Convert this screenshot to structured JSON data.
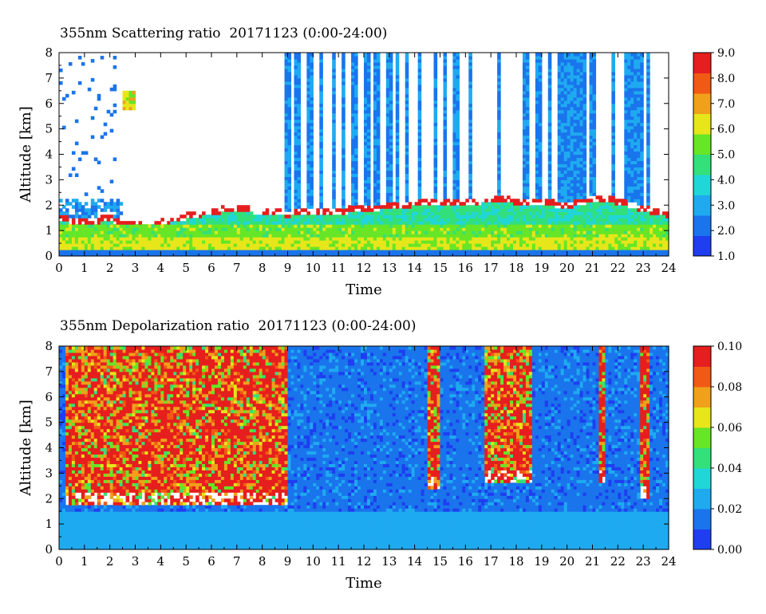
{
  "colors": {
    "scale": [
      "#1e3ef0",
      "#1a74ec",
      "#1faaf0",
      "#20d6d6",
      "#33e07a",
      "#66e626",
      "#e6e61a",
      "#f0a01a",
      "#f05a14",
      "#e61e1e"
    ],
    "background": "#ffffff"
  },
  "chart_data": [
    {
      "type": "heatmap",
      "title": "355nm Scattering ratio  20171123 (0:00-24:00)",
      "xlabel": "Time",
      "ylabel": "Altitude [km]",
      "xlim": [
        0,
        24
      ],
      "ylim": [
        0,
        8
      ],
      "x_ticks": [
        "0",
        "1",
        "2",
        "3",
        "4",
        "5",
        "6",
        "7",
        "8",
        "9",
        "10",
        "11",
        "12",
        "13",
        "14",
        "15",
        "16",
        "17",
        "18",
        "19",
        "20",
        "21",
        "22",
        "23",
        "24"
      ],
      "y_ticks": [
        "0",
        "1",
        "2",
        "3",
        "4",
        "5",
        "6",
        "7",
        "8"
      ],
      "colorbar": {
        "min": 1.0,
        "max": 9.0,
        "ticks": [
          "1.0",
          "2.0",
          "3.0",
          "4.0",
          "5.0",
          "6.0",
          "7.0",
          "8.0",
          "9.0"
        ]
      },
      "summary": {
        "low_level_band_km": [
          0,
          1.2
        ],
        "cloud_top_profile": [
          {
            "time": 0,
            "alt": 1.6
          },
          {
            "time": 1,
            "alt": 1.5
          },
          {
            "time": 2,
            "alt": 1.6
          },
          {
            "time": 3,
            "alt": 1.3
          },
          {
            "time": 4,
            "alt": 1.5
          },
          {
            "time": 5,
            "alt": 1.7
          },
          {
            "time": 6,
            "alt": 1.9
          },
          {
            "time": 7,
            "alt": 2.0
          },
          {
            "time": 8,
            "alt": 1.9
          },
          {
            "time": 9,
            "alt": 1.8
          },
          {
            "time": 10,
            "alt": 1.9
          },
          {
            "time": 11,
            "alt": 1.9
          },
          {
            "time": 12,
            "alt": 2.0
          },
          {
            "time": 13,
            "alt": 2.1
          },
          {
            "time": 14,
            "alt": 2.2
          },
          {
            "time": 15,
            "alt": 2.3
          },
          {
            "time": 16,
            "alt": 2.2
          },
          {
            "time": 17,
            "alt": 2.4
          },
          {
            "time": 18,
            "alt": 2.3
          },
          {
            "time": 19,
            "alt": 2.3
          },
          {
            "time": 20,
            "alt": 2.1
          },
          {
            "time": 21,
            "alt": 2.4
          },
          {
            "time": 22,
            "alt": 2.3
          },
          {
            "time": 23,
            "alt": 2.0
          },
          {
            "time": 24,
            "alt": 1.8
          }
        ],
        "cloud_patch": {
          "time": [
            2.5,
            3.0
          ],
          "alt": [
            5.7,
            6.5
          ],
          "value": 6.5
        },
        "column_times": [
          9.0,
          9.4,
          9.9,
          10.3,
          10.8,
          11.2,
          11.6,
          12.1,
          12.5,
          13.0,
          13.3,
          13.7,
          14.2,
          14.8,
          15.2,
          15.6,
          16.2,
          17.3,
          18.4,
          18.9,
          19.3,
          19.7,
          20.2,
          21.0,
          21.8,
          22.4,
          23.2
        ]
      }
    },
    {
      "type": "heatmap",
      "title": "355nm Depolarization ratio  20171123 (0:00-24:00)",
      "xlabel": "Time",
      "ylabel": "Altitude [km]",
      "xlim": [
        0,
        24
      ],
      "ylim": [
        0,
        8
      ],
      "x_ticks": [
        "0",
        "1",
        "2",
        "3",
        "4",
        "5",
        "6",
        "7",
        "8",
        "9",
        "10",
        "11",
        "12",
        "13",
        "14",
        "15",
        "16",
        "17",
        "18",
        "19",
        "20",
        "21",
        "22",
        "23",
        "24"
      ],
      "y_ticks": [
        "0",
        "1",
        "2",
        "3",
        "4",
        "5",
        "6",
        "7",
        "8"
      ],
      "colorbar": {
        "min": 0.0,
        "max": 0.1,
        "ticks": [
          "0.00",
          "0.02",
          "0.04",
          "0.06",
          "0.08",
          "0.10"
        ]
      },
      "summary": {
        "high_depol_regions": [
          {
            "time": [
              0.3,
              9.0
            ],
            "alt": [
              1.8,
              8.0
            ]
          },
          {
            "time": [
              14.5,
              15.0
            ],
            "alt": [
              2.4,
              8.0
            ]
          },
          {
            "time": [
              16.8,
              18.6
            ],
            "alt": [
              2.6,
              8.0
            ]
          },
          {
            "time": [
              21.2,
              21.5
            ],
            "alt": [
              2.6,
              8.0
            ]
          },
          {
            "time": [
              22.9,
              23.2
            ],
            "alt": [
              2.0,
              8.0
            ]
          }
        ],
        "low_level_band_km": [
          0,
          1.5
        ]
      }
    }
  ]
}
